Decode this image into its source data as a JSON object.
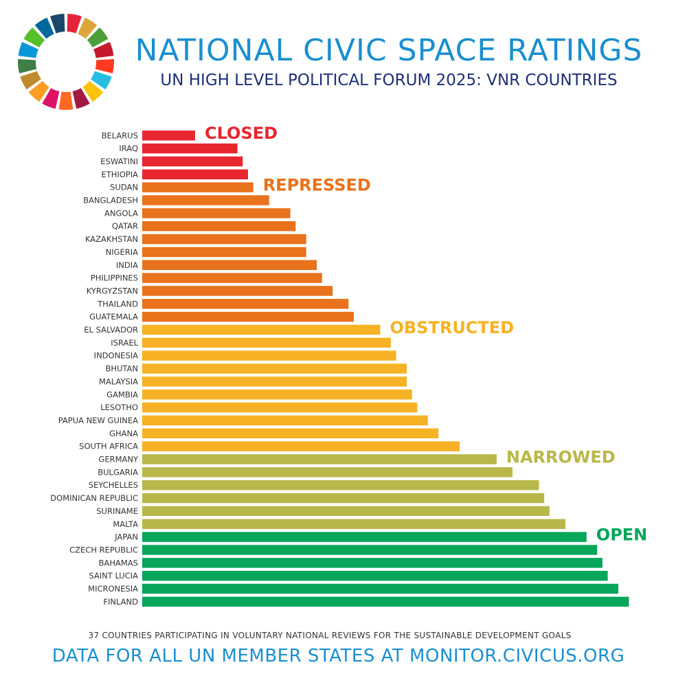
{
  "header": {
    "title": "NATIONAL CIVIC SPACE RATINGS",
    "subtitle": "UN HIGH LEVEL POLITICAL FORUM 2025: VNR COUNTRIES"
  },
  "footer": {
    "note": "37 COUNTRIES PARTICIPATING IN VOLUNTARY NATIONAL REVIEWS FOR THE SUSTAINABLE DEVELOPMENT GOALS",
    "link": "DATA FOR ALL UN MEMBER STATES AT MONITOR.CIVICUS.ORG"
  },
  "logo": {
    "icon": "sdg-wheel-icon",
    "segment_colors": [
      "#e5243b",
      "#dda63a",
      "#4c9f38",
      "#c5192d",
      "#ff3a21",
      "#26bde2",
      "#fcc30b",
      "#a21942",
      "#fd6925",
      "#dd1367",
      "#fd9d24",
      "#bf8b2e",
      "#3f7e44",
      "#0a97d9",
      "#56c02b",
      "#00689d",
      "#19486a"
    ]
  },
  "chart_data": {
    "type": "bar",
    "orientation": "horizontal",
    "categories": [
      "BELARUS",
      "IRAQ",
      "ESWATINI",
      "ETHIOPIA",
      "SUDAN",
      "BANGLADESH",
      "ANGOLA",
      "QATAR",
      "KAZAKHSTAN",
      "NIGERIA",
      "INDIA",
      "PHILIPPINES",
      "KYRGYZSTAN",
      "THAILAND",
      "GUATEMALA",
      "EL SALVADOR",
      "ISRAEL",
      "INDONESIA",
      "BHUTAN",
      "MALAYSIA",
      "GAMBIA",
      "LESOTHO",
      "PAPUA NEW GUINEA",
      "GHANA",
      "SOUTH AFRICA",
      "GERMANY",
      "BULGARIA",
      "SEYCHELLES",
      "DOMINICAN REPUBLIC",
      "SURINAME",
      "MALTA",
      "JAPAN",
      "CZECH REPUBLIC",
      "BAHAMAS",
      "SAINT LUCIA",
      "MICRONESIA",
      "FINLAND"
    ],
    "values": [
      10,
      18,
      19,
      20,
      21,
      24,
      28,
      29,
      31,
      31,
      33,
      34,
      36,
      39,
      40,
      45,
      47,
      48,
      50,
      50,
      51,
      52,
      54,
      56,
      60,
      67,
      70,
      75,
      76,
      77,
      80,
      84,
      86,
      87,
      88,
      90,
      92
    ],
    "ratings": [
      "closed",
      "closed",
      "closed",
      "closed",
      "repressed",
      "repressed",
      "repressed",
      "repressed",
      "repressed",
      "repressed",
      "repressed",
      "repressed",
      "repressed",
      "repressed",
      "repressed",
      "obstructed",
      "obstructed",
      "obstructed",
      "obstructed",
      "obstructed",
      "obstructed",
      "obstructed",
      "obstructed",
      "obstructed",
      "obstructed",
      "narrowed",
      "narrowed",
      "narrowed",
      "narrowed",
      "narrowed",
      "narrowed",
      "open",
      "open",
      "open",
      "open",
      "open",
      "open"
    ],
    "xlim": [
      0,
      100
    ],
    "grid": false,
    "categories_legend": [
      {
        "key": "closed",
        "label": "CLOSED",
        "color": "#e8262f",
        "first_index": 0
      },
      {
        "key": "repressed",
        "label": "REPRESSED",
        "color": "#e9721c",
        "first_index": 4
      },
      {
        "key": "obstructed",
        "label": "OBSTRUCTED",
        "color": "#f6b224",
        "first_index": 15
      },
      {
        "key": "narrowed",
        "label": "NARROWED",
        "color": "#b8b84a",
        "first_index": 25
      },
      {
        "key": "open",
        "label": "OPEN",
        "color": "#07a65b",
        "first_index": 31
      }
    ]
  }
}
